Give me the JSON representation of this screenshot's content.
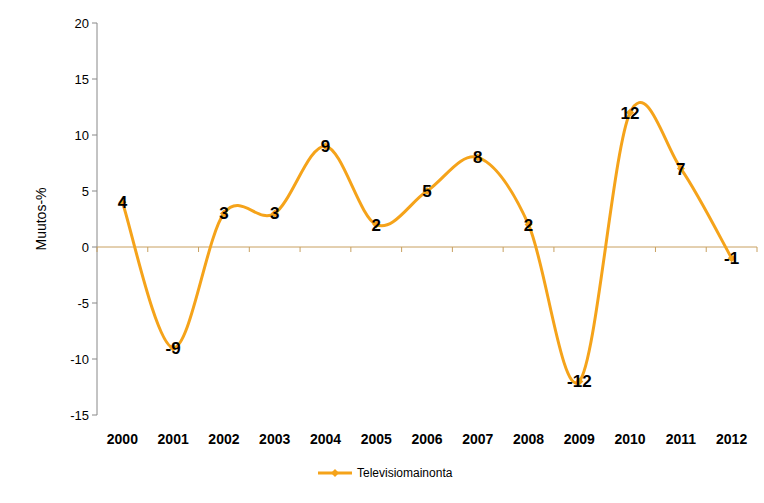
{
  "chart_data": {
    "type": "line",
    "categories": [
      "2000",
      "2001",
      "2002",
      "2003",
      "2004",
      "2005",
      "2006",
      "2007",
      "2008",
      "2009",
      "2010",
      "2011",
      "2012"
    ],
    "series": [
      {
        "name": "Televisiomainonta",
        "color": "#F5A31A",
        "marker": "diamond",
        "line_style": "smooth",
        "values": [
          4,
          -9,
          3,
          3,
          9,
          2,
          5,
          8,
          2,
          -12,
          12,
          7,
          -1
        ]
      }
    ],
    "y_label": "Muutos-%",
    "ylim": [
      -15,
      20
    ],
    "yticks": [
      -15,
      -10,
      -5,
      0,
      5,
      10,
      15,
      20
    ],
    "data_labels": true,
    "legend": "bottom",
    "grid": false
  }
}
